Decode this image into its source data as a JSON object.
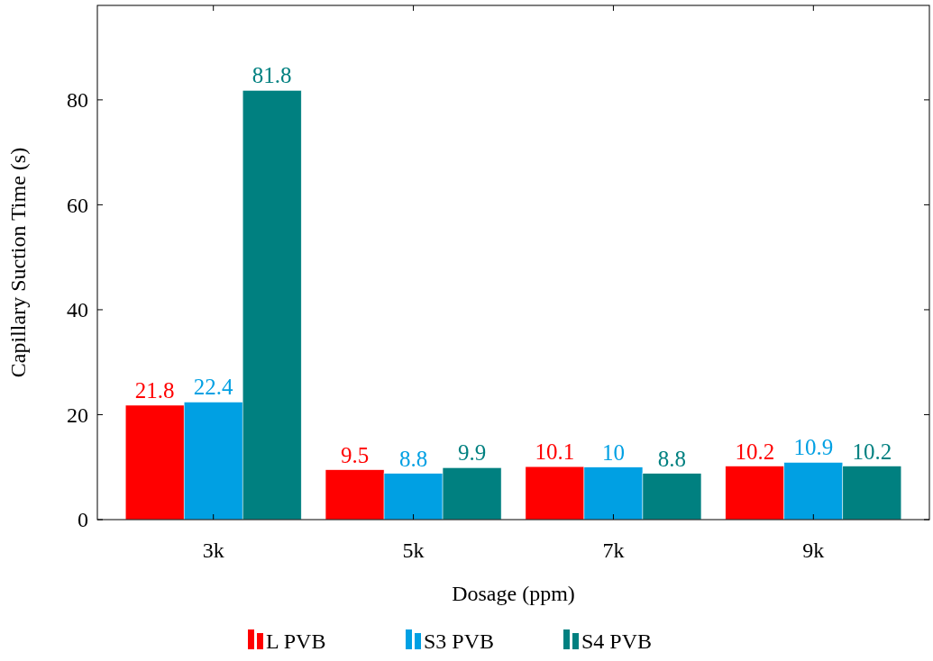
{
  "chart_data": {
    "type": "bar",
    "xlabel": "Dosage (ppm)",
    "ylabel": "Capillary Suction Time (s)",
    "categories": [
      "3k",
      "5k",
      "7k",
      "9k"
    ],
    "series": [
      {
        "name": "L PVB",
        "color": "#ff0000",
        "values": [
          21.8,
          9.5,
          10.1,
          10.2
        ]
      },
      {
        "name": "S3 PVB",
        "color": "#00a0e3",
        "values": [
          22.4,
          8.8,
          10,
          10.9
        ]
      },
      {
        "name": "S4 PVB",
        "color": "#008080",
        "values": [
          81.8,
          9.9,
          8.8,
          10.2
        ]
      }
    ],
    "ylim": [
      0,
      98
    ],
    "yticks": [
      0,
      20,
      40,
      60,
      80
    ],
    "data_labels": true,
    "legend": "bottom",
    "grid": false
  }
}
